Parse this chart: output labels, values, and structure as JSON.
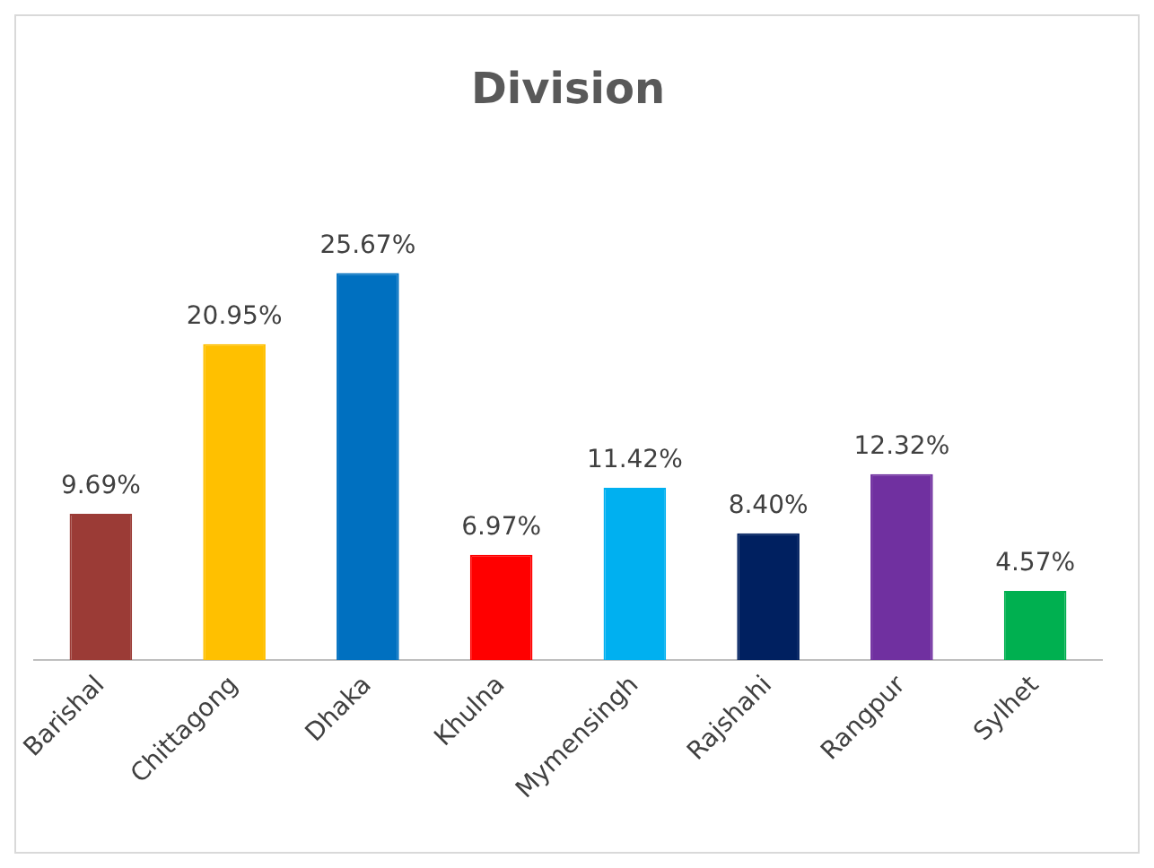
{
  "chart_data": {
    "type": "bar",
    "title": "Division",
    "categories": [
      "Barishal",
      "Chittagong",
      "Dhaka",
      "Khulna",
      "Mymensingh",
      "Rajshahi",
      "Rangpur",
      "Sylhet"
    ],
    "values": [
      9.69,
      20.95,
      25.67,
      6.97,
      11.42,
      8.4,
      12.32,
      4.57
    ],
    "value_labels": [
      "9.69%",
      "20.95%",
      "25.67%",
      "6.97%",
      "11.42%",
      "8.40%",
      "12.32%",
      "4.57%"
    ],
    "colors": [
      "#9b3b36",
      "#ffc000",
      "#0070c0",
      "#ff0000",
      "#00b0f0",
      "#002060",
      "#7030a0",
      "#00b050"
    ],
    "grid": false,
    "legend": false
  }
}
